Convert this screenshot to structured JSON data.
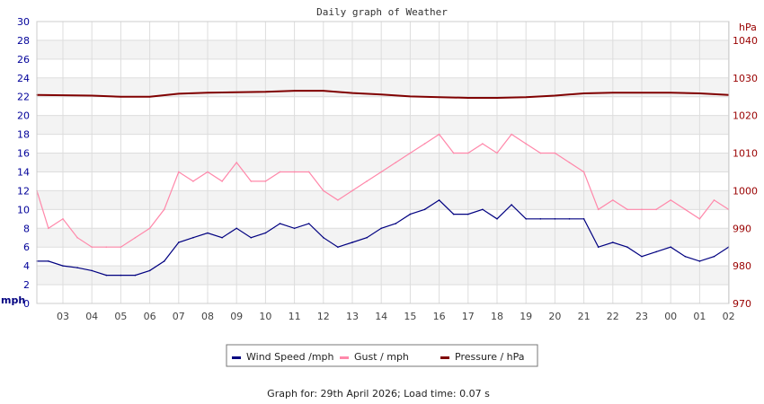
{
  "chart_data": {
    "type": "line",
    "title": "Daily graph of Weather",
    "left_axis": {
      "unit_label": "mph",
      "ylim": [
        0,
        30
      ],
      "ticks": [
        "0",
        "2",
        "4",
        "6",
        "8",
        "10",
        "12",
        "14",
        "16",
        "18",
        "20",
        "22",
        "24",
        "26",
        "28",
        "30"
      ],
      "color": "#000099"
    },
    "right_axis": {
      "unit_label": "hPa",
      "ylim": [
        970,
        1040
      ],
      "ticks": [
        "970",
        "980",
        "990",
        "1000",
        "1010",
        "1020",
        "1030",
        "1040"
      ],
      "color": "#990000"
    },
    "x_ticks": [
      "03",
      "04",
      "05",
      "06",
      "07",
      "08",
      "09",
      "10",
      "11",
      "12",
      "13",
      "14",
      "15",
      "16",
      "17",
      "18",
      "19",
      "20",
      "21",
      "22",
      "23",
      "00",
      "01",
      "02"
    ],
    "grid": true,
    "legend_position": "bottom",
    "x": [
      "02:05",
      "02:30",
      "03:00",
      "03:30",
      "04:00",
      "04:30",
      "05:00",
      "05:30",
      "06:00",
      "06:30",
      "07:00",
      "07:30",
      "08:00",
      "08:30",
      "09:00",
      "09:30",
      "10:00",
      "10:30",
      "11:00",
      "11:30",
      "12:00",
      "12:30",
      "13:00",
      "13:30",
      "14:00",
      "14:30",
      "15:00",
      "15:30",
      "16:00",
      "16:30",
      "17:00",
      "17:30",
      "18:00",
      "18:30",
      "19:00",
      "19:30",
      "20:00",
      "20:30",
      "21:00",
      "21:30",
      "22:00",
      "22:30",
      "23:00",
      "23:30",
      "00:00",
      "00:30",
      "01:00",
      "01:30",
      "02:00"
    ],
    "series": [
      {
        "name": "Wind Speed /mph",
        "axis": "left",
        "color": "#000080",
        "values": [
          4.5,
          4.5,
          4.0,
          3.8,
          3.5,
          3.0,
          3.0,
          3.0,
          3.5,
          4.5,
          6.5,
          7.0,
          7.5,
          7.0,
          8.0,
          7.0,
          7.5,
          8.5,
          8.0,
          8.5,
          7.0,
          6.0,
          6.5,
          7.0,
          8.0,
          8.5,
          9.5,
          10.0,
          11.0,
          9.5,
          9.5,
          10.0,
          9.0,
          10.5,
          9.0,
          9.0,
          9.0,
          9.0,
          9.0,
          6.0,
          6.5,
          6.0,
          5.0,
          5.5,
          6.0,
          5.0,
          4.5,
          5.0,
          6.0
        ]
      },
      {
        "name": "Gust / mph",
        "axis": "left",
        "color": "#ff88aa",
        "values": [
          12,
          8,
          9,
          7,
          6,
          6,
          6,
          7,
          8,
          10,
          14,
          13,
          14,
          13,
          15,
          13,
          13,
          14,
          14,
          14,
          12,
          11,
          12,
          13,
          14,
          15,
          16,
          17,
          18,
          16,
          16,
          17,
          16,
          18,
          17,
          16,
          16,
          15,
          14,
          10,
          11,
          10,
          10,
          10,
          11,
          10,
          9,
          11,
          10
        ]
      },
      {
        "name": "Pressure / hPa",
        "axis": "right",
        "color": "#800000",
        "x": [
          "02:05",
          "04:00",
          "05:00",
          "06:00",
          "07:00",
          "08:00",
          "10:00",
          "11:00",
          "12:00",
          "13:00",
          "14:00",
          "15:00",
          "16:00",
          "17:00",
          "18:00",
          "19:00",
          "20:00",
          "21:00",
          "22:00",
          "23:00",
          "00:00",
          "01:00",
          "02:00"
        ],
        "values": [
          1025.5,
          1025.3,
          1025.0,
          1025.0,
          1025.8,
          1026.1,
          1026.3,
          1026.6,
          1026.6,
          1026.0,
          1025.6,
          1025.1,
          1024.9,
          1024.7,
          1024.7,
          1024.9,
          1025.3,
          1025.9,
          1026.1,
          1026.1,
          1026.1,
          1025.9,
          1025.5
        ]
      }
    ]
  },
  "footer": "Graph for: 29th April 2026; Load time: 0.07 s"
}
